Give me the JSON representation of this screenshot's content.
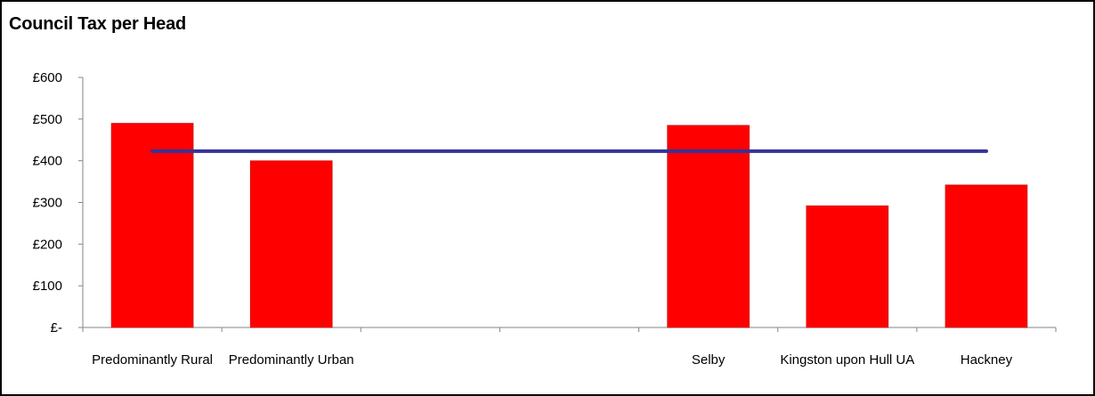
{
  "chart_data": {
    "type": "bar",
    "title": "Council Tax per Head",
    "categories": [
      "Predominantly Rural",
      "Predominantly Urban",
      "",
      "",
      "Selby",
      "Kingston upon Hull UA",
      "Hackney"
    ],
    "series": [
      {
        "type": "bar",
        "values": [
          490,
          400,
          null,
          null,
          485,
          292,
          342
        ],
        "color": "#ff0000"
      },
      {
        "type": "line",
        "values": [
          423,
          423,
          423,
          423,
          423,
          423,
          423
        ],
        "color": "#333399"
      }
    ],
    "ylim": [
      0,
      600
    ],
    "yticks": [
      0,
      100,
      200,
      300,
      400,
      500,
      600
    ],
    "ytick_labels": [
      "£-",
      "£100",
      "£200",
      "£300",
      "£400",
      "£500",
      "£600"
    ],
    "xlabel": "",
    "ylabel": "",
    "grid": false,
    "legend": "none"
  }
}
